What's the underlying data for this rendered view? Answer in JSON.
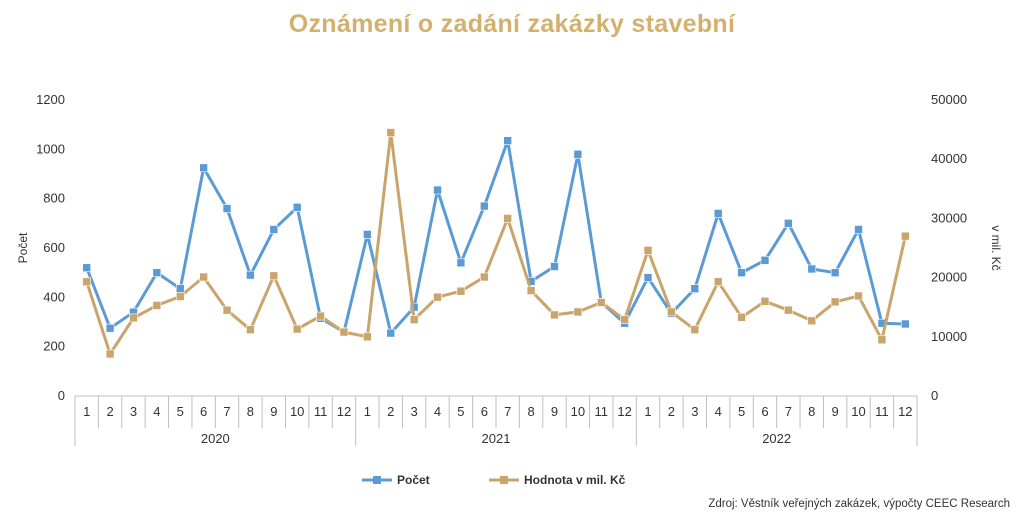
{
  "chart_data": {
    "type": "line",
    "title": "Oznámení o zadání zakázky stavební",
    "ylabel": "Počet",
    "y2label": "v mil. Kč",
    "ylim": [
      0,
      1200
    ],
    "y2lim": [
      0,
      50000
    ],
    "yticks": [
      "0",
      "200",
      "400",
      "600",
      "800",
      "1000",
      "1200"
    ],
    "y2ticks": [
      "0",
      "10000",
      "20000",
      "30000",
      "40000",
      "50000"
    ],
    "months": [
      "1",
      "2",
      "3",
      "4",
      "5",
      "6",
      "7",
      "8",
      "9",
      "10",
      "11",
      "12",
      "1",
      "2",
      "3",
      "4",
      "5",
      "6",
      "7",
      "8",
      "9",
      "10",
      "11",
      "12",
      "1",
      "2",
      "3",
      "4",
      "5",
      "6",
      "7",
      "8",
      "9",
      "10",
      "11",
      "12"
    ],
    "years": [
      "2020",
      "2021",
      "2022"
    ],
    "series": [
      {
        "name": "Počet",
        "axis": "left",
        "color": "#5b9bd5",
        "values": [
          520,
          275,
          340,
          500,
          435,
          925,
          760,
          490,
          675,
          765,
          315,
          260,
          655,
          255,
          360,
          835,
          540,
          770,
          1035,
          465,
          525,
          980,
          380,
          295,
          480,
          335,
          435,
          740,
          500,
          550,
          700,
          515,
          500,
          675,
          295,
          292
        ]
      },
      {
        "name": "Hodnota v mil. Kč",
        "axis": "right",
        "color": "#c9a46b",
        "values": [
          19300,
          7100,
          13200,
          15300,
          16800,
          20100,
          14500,
          11200,
          20300,
          11300,
          13500,
          10800,
          10000,
          44500,
          12900,
          16700,
          17700,
          20100,
          30000,
          17800,
          13700,
          14200,
          15800,
          12900,
          24600,
          14200,
          11200,
          19300,
          13300,
          16000,
          14500,
          12700,
          15900,
          16900,
          9500,
          27000
        ]
      }
    ],
    "source": "Zdroj: Věstník veřejných zakázek, výpočty CEEC Research"
  }
}
